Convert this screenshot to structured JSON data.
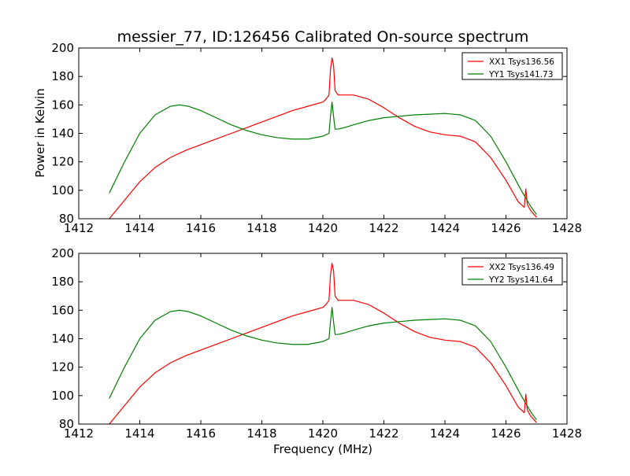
{
  "figure": {
    "title": "messier_77, ID:126456 Calibrated On-source spectrum",
    "xlabel": "Frequency (MHz)",
    "ylabel": "Power in Kelvin"
  },
  "chart_data": [
    {
      "type": "line",
      "title": "messier_77, ID:126456 Calibrated On-source spectrum",
      "xlabel": "",
      "ylabel": "Power in Kelvin",
      "xlim": [
        1412,
        1428
      ],
      "ylim": [
        80,
        200
      ],
      "xticks": [
        1412,
        1414,
        1416,
        1418,
        1420,
        1422,
        1424,
        1426,
        1428
      ],
      "yticks": [
        80,
        100,
        120,
        140,
        160,
        180,
        200
      ],
      "grid": false,
      "legend_position": "top-right",
      "series": [
        {
          "name": "XX1 Tsys136.56",
          "color": "#ff0000",
          "x": [
            1413.0,
            1413.5,
            1414.0,
            1414.5,
            1415.0,
            1415.5,
            1416.0,
            1416.5,
            1417.0,
            1417.5,
            1418.0,
            1418.5,
            1419.0,
            1419.5,
            1420.0,
            1420.1,
            1420.2,
            1420.25,
            1420.3,
            1420.35,
            1420.4,
            1420.5,
            1420.7,
            1421.0,
            1421.5,
            1422.0,
            1422.5,
            1423.0,
            1423.5,
            1424.0,
            1424.5,
            1425.0,
            1425.5,
            1426.0,
            1426.4,
            1426.6,
            1426.65,
            1426.7,
            1426.8,
            1427.0
          ],
          "y": [
            80,
            93,
            106,
            116,
            123,
            128,
            132,
            136,
            140,
            144,
            148,
            152,
            156,
            159,
            162,
            164,
            167,
            185,
            193,
            188,
            170,
            167,
            167,
            167,
            164,
            158,
            151,
            145,
            141,
            139,
            138,
            134,
            123,
            107,
            92,
            88,
            101,
            90,
            86,
            81
          ]
        },
        {
          "name": "YY1 Tsys141.73",
          "color": "#007f00",
          "x": [
            1413.0,
            1413.5,
            1414.0,
            1414.5,
            1415.0,
            1415.3,
            1415.6,
            1416.0,
            1416.5,
            1417.0,
            1417.5,
            1418.0,
            1418.5,
            1419.0,
            1419.5,
            1420.0,
            1420.1,
            1420.2,
            1420.25,
            1420.3,
            1420.35,
            1420.4,
            1420.5,
            1420.7,
            1421.0,
            1421.5,
            1422.0,
            1422.5,
            1423.0,
            1423.5,
            1424.0,
            1424.5,
            1425.0,
            1425.5,
            1426.0,
            1426.5,
            1426.8,
            1427.0
          ],
          "y": [
            98,
            120,
            140,
            153,
            159,
            160,
            159,
            156,
            151,
            146,
            142,
            139,
            137,
            136,
            136,
            138,
            139,
            140,
            152,
            162,
            152,
            143,
            143,
            144,
            146,
            149,
            151,
            152,
            153,
            153.5,
            154,
            153,
            149,
            138,
            120,
            100,
            89,
            83
          ]
        }
      ]
    },
    {
      "type": "line",
      "title": "",
      "xlabel": "Frequency (MHz)",
      "ylabel": "",
      "xlim": [
        1412,
        1428
      ],
      "ylim": [
        80,
        200
      ],
      "xticks": [
        1412,
        1414,
        1416,
        1418,
        1420,
        1422,
        1424,
        1426,
        1428
      ],
      "yticks": [
        80,
        100,
        120,
        140,
        160,
        180,
        200
      ],
      "grid": false,
      "legend_position": "top-right",
      "series": [
        {
          "name": "XX2 Tsys136.49",
          "color": "#ff0000",
          "x": [
            1413.0,
            1413.5,
            1414.0,
            1414.5,
            1415.0,
            1415.5,
            1416.0,
            1416.5,
            1417.0,
            1417.5,
            1418.0,
            1418.5,
            1419.0,
            1419.5,
            1420.0,
            1420.1,
            1420.2,
            1420.25,
            1420.3,
            1420.35,
            1420.4,
            1420.5,
            1420.7,
            1421.0,
            1421.5,
            1422.0,
            1422.5,
            1423.0,
            1423.5,
            1424.0,
            1424.5,
            1425.0,
            1425.5,
            1426.0,
            1426.4,
            1426.6,
            1426.65,
            1426.7,
            1426.8,
            1427.0
          ],
          "y": [
            80,
            93,
            106,
            116,
            123,
            128,
            132,
            136,
            140,
            144,
            148,
            152,
            156,
            159,
            162,
            164,
            167,
            185,
            193,
            188,
            170,
            167,
            167,
            167,
            164,
            158,
            151,
            145,
            141,
            139,
            138,
            134,
            123,
            107,
            92,
            88,
            101,
            90,
            86,
            81
          ]
        },
        {
          "name": "YY2 Tsys141.64",
          "color": "#007f00",
          "x": [
            1413.0,
            1413.5,
            1414.0,
            1414.5,
            1415.0,
            1415.3,
            1415.6,
            1416.0,
            1416.5,
            1417.0,
            1417.5,
            1418.0,
            1418.5,
            1419.0,
            1419.5,
            1420.0,
            1420.1,
            1420.2,
            1420.25,
            1420.3,
            1420.35,
            1420.4,
            1420.5,
            1420.7,
            1421.0,
            1421.5,
            1422.0,
            1422.5,
            1423.0,
            1423.5,
            1424.0,
            1424.5,
            1425.0,
            1425.5,
            1426.0,
            1426.5,
            1426.8,
            1427.0
          ],
          "y": [
            98,
            120,
            140,
            153,
            159,
            160,
            159,
            156,
            151,
            146,
            142,
            139,
            137,
            136,
            136,
            138,
            139,
            140,
            152,
            162,
            152,
            143,
            143,
            144,
            146,
            149,
            151,
            152,
            153,
            153.5,
            154,
            153,
            149,
            138,
            120,
            100,
            89,
            83
          ]
        }
      ]
    }
  ]
}
